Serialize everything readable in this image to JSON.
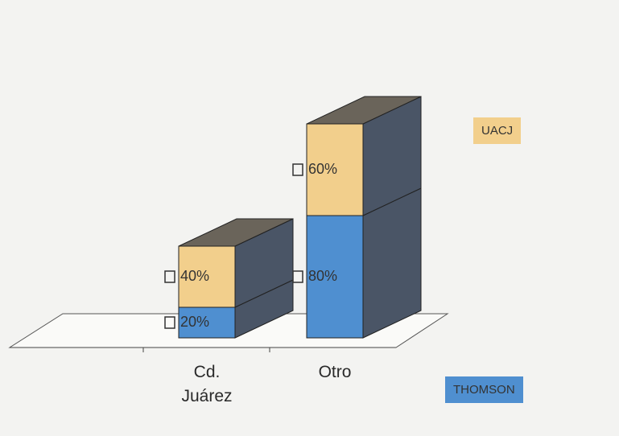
{
  "chart_data": {
    "type": "bar3d_stacked",
    "categories": [
      "Cd. Juárez",
      "Otro"
    ],
    "series": [
      {
        "name": "THOMSON",
        "color": "#4f8fd0",
        "values": [
          20,
          80
        ],
        "value_labels": [
          "20%",
          "80%"
        ]
      },
      {
        "name": "UACJ",
        "color": "#f2cf8c",
        "values": [
          40,
          60
        ],
        "value_labels": [
          "40%",
          "60%"
        ]
      }
    ]
  }
}
